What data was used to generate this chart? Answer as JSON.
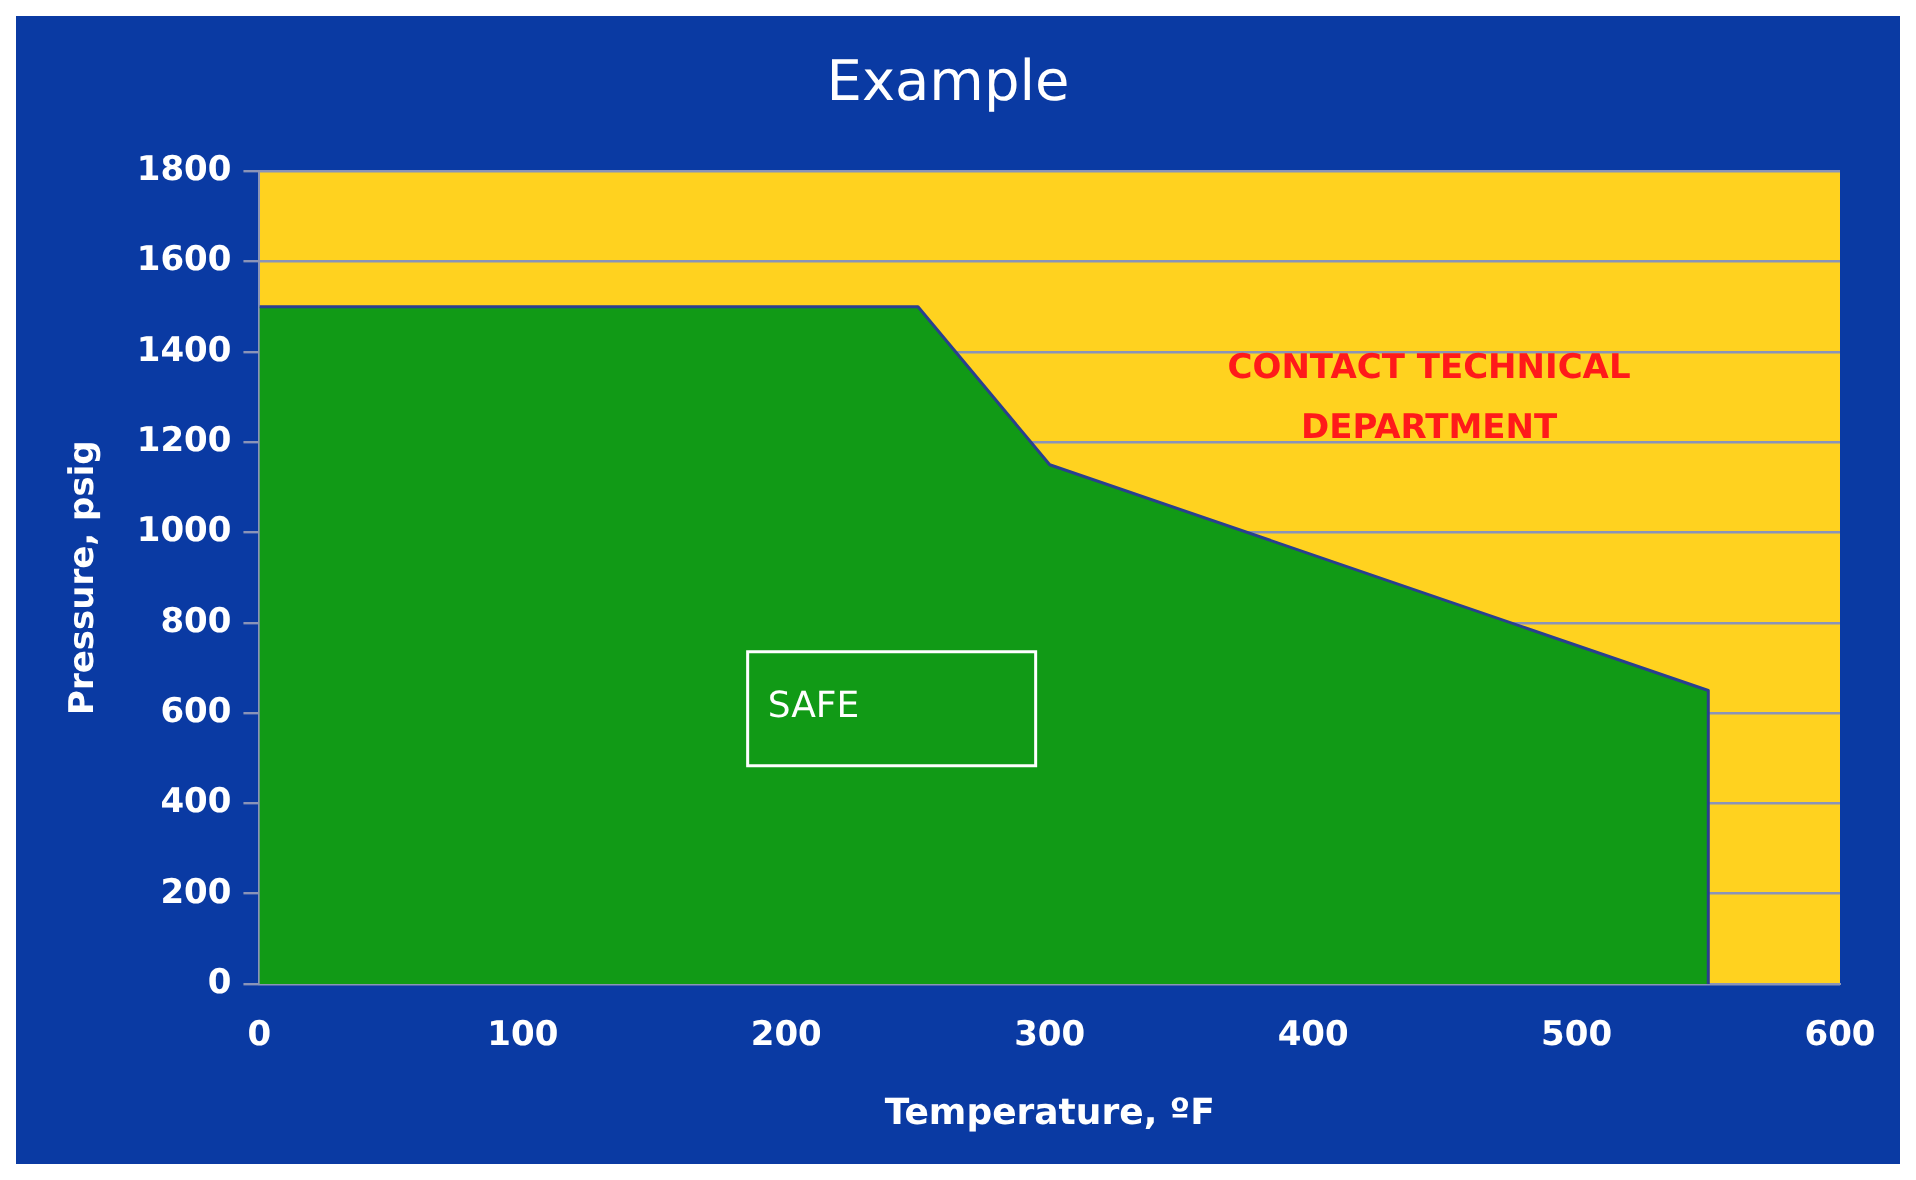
{
  "chart_data": {
    "type": "area",
    "title": "Example",
    "xlabel": "Temperature, ºF",
    "ylabel": "Pressure, psig",
    "x": [
      0,
      250,
      300,
      550,
      550
    ],
    "series": [
      {
        "color": "#119a16",
        "values": [
          1500,
          1500,
          1150,
          650,
          0
        ]
      }
    ],
    "xlim": [
      0,
      600
    ],
    "xticks": [
      0,
      100,
      200,
      300,
      400,
      500,
      600
    ],
    "ylim": [
      0,
      1800
    ],
    "yticks": [
      0,
      200,
      400,
      600,
      800,
      1000,
      1200,
      1400,
      1600,
      1800
    ],
    "grid": "y",
    "legend": false,
    "bands": [
      {
        "axis": "x",
        "from": 0,
        "to": 600,
        "color": "#ffd21f"
      }
    ],
    "annotations": [
      "CONTACT TECHNICAL DEPARTMENT",
      "SAFE"
    ]
  }
}
